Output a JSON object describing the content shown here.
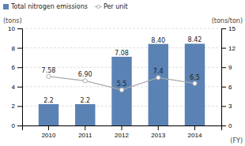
{
  "chart_data": {
    "type": "bar",
    "categories": [
      "2010",
      "2011",
      "2012",
      "2013",
      "2014"
    ],
    "series": [
      {
        "name": "Total nitrogen emissions",
        "type": "bar",
        "color": "#5b82b4",
        "values": [
          2.2,
          2.2,
          7.08,
          8.4,
          8.42
        ],
        "value_labels": [
          "2.2",
          "2.2",
          "7.08",
          "8.40",
          "8.42"
        ]
      },
      {
        "name": "Per unit",
        "type": "line",
        "axis": "y2",
        "color": "#aaaaaa",
        "marker": "circle",
        "values": [
          7.58,
          6.9,
          5.5,
          7.4,
          6.5
        ],
        "value_labels": [
          "7.58",
          "6.90",
          "5.5",
          "7.4",
          "6.5"
        ]
      }
    ],
    "ylabel": "(tons)",
    "y2label": "(tons/ton)",
    "xlabel": "(FY)",
    "ylim": [
      0,
      10
    ],
    "yticks": [
      0,
      2,
      4,
      6,
      8,
      10
    ],
    "y2lim": [
      0,
      15
    ],
    "y2ticks": [
      0,
      3,
      6,
      9,
      12,
      15
    ],
    "grid": true,
    "legend": "top-left",
    "data_labels": true
  }
}
